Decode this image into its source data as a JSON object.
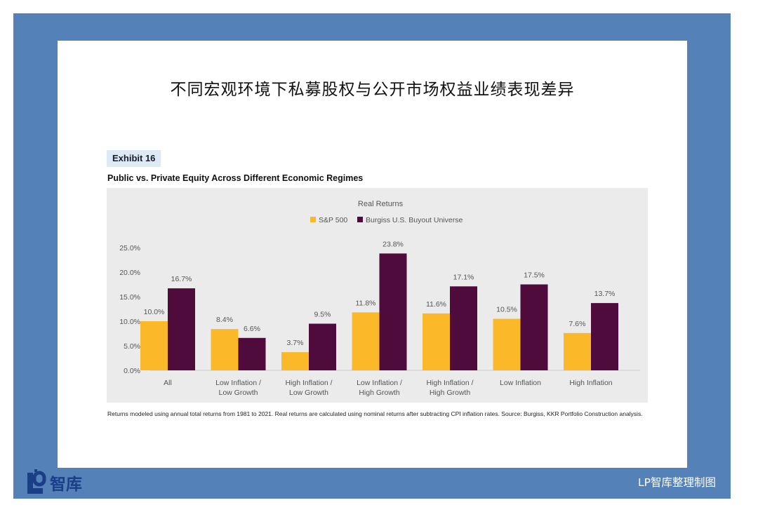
{
  "page": {
    "title": "不同宏观环境下私募股权与公开市场权益业绩表现差异",
    "exhibit": "Exhibit 16",
    "subtitle": "Public vs. Private Equity Across Different Economic Regimes",
    "footnote": "Returns modeled using annual total returns from 1981 to 2021. Real returns are calculated using nominal returns after subtracting CPI inflation rates. Source: Burgiss, KKR Portfolio Construction analysis.",
    "brand_name": "智库",
    "credit": "LP智库整理制图"
  },
  "colors": {
    "frame": "#5381b8",
    "sp500": "#fbb829",
    "buyout": "#4f0b3c",
    "brand": "#1a3f86"
  },
  "chart_data": {
    "type": "bar",
    "title": "Real Returns",
    "categories": [
      [
        "All"
      ],
      [
        "Low Inflation /",
        "Low Growth"
      ],
      [
        "High Inflation /",
        "Low Growth"
      ],
      [
        "Low Inflation /",
        "High Growth"
      ],
      [
        "High Inflation /",
        "High Growth"
      ],
      [
        "Low Inflation"
      ],
      [
        "High Inflation"
      ]
    ],
    "series": [
      {
        "name": "S&P 500",
        "color": "#fbb829",
        "values": [
          10.0,
          8.4,
          3.7,
          11.8,
          11.6,
          10.5,
          7.6
        ],
        "labels": [
          "10.0%",
          "8.4%",
          "3.7%",
          "11.8%",
          "11.6%",
          "10.5%",
          "7.6%"
        ]
      },
      {
        "name": "Burgiss U.S. Buyout Universe",
        "color": "#4f0b3c",
        "values": [
          16.7,
          6.6,
          9.5,
          23.8,
          17.1,
          17.5,
          13.7
        ],
        "labels": [
          "16.7%",
          "6.6%",
          "9.5%",
          "23.8%",
          "17.1%",
          "17.5%",
          "13.7%"
        ]
      }
    ],
    "y_ticks": [
      "0.0%",
      "5.0%",
      "10.0%",
      "15.0%",
      "20.0%",
      "25.0%"
    ],
    "y_tick_values": [
      0,
      5,
      10,
      15,
      20,
      25
    ],
    "ylim": [
      0,
      25
    ],
    "grid": false,
    "legend_position": "top-center"
  }
}
